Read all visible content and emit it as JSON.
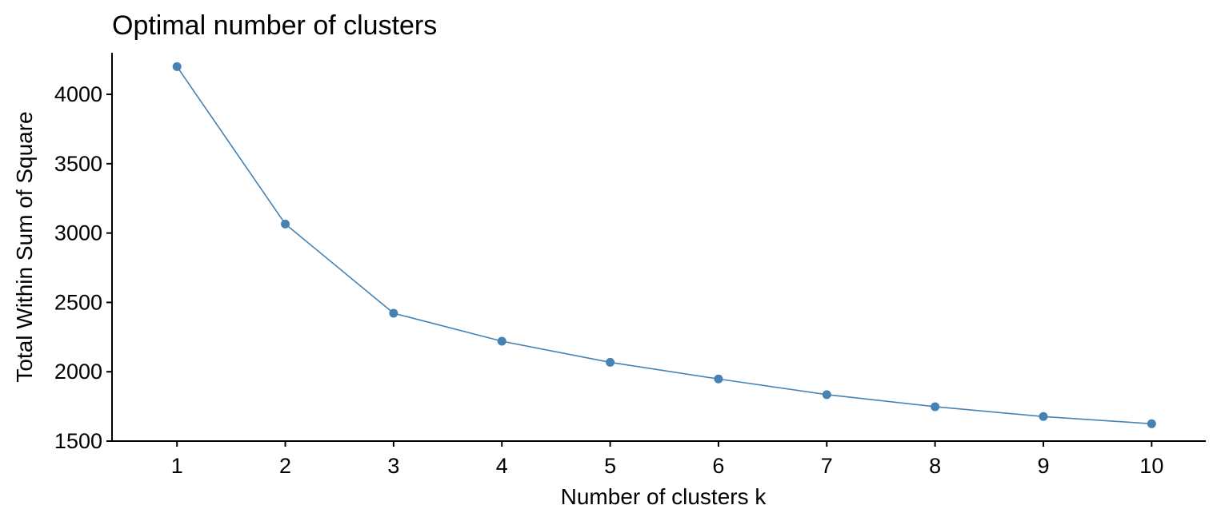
{
  "chart_data": {
    "type": "line",
    "title": "Optimal number of clusters",
    "xlabel": "Number of clusters k",
    "ylabel": "Total Within Sum of Square",
    "x": [
      1,
      2,
      3,
      4,
      5,
      6,
      7,
      8,
      9,
      10
    ],
    "series": [
      {
        "values": [
          4200,
          3065,
          2422,
          2220,
          2068,
          1948,
          1835,
          1748,
          1677,
          1625
        ]
      }
    ],
    "xticks": [
      1,
      2,
      3,
      4,
      5,
      6,
      7,
      8,
      9,
      10
    ],
    "yticks": [
      1500,
      2000,
      2500,
      3000,
      3500,
      4000
    ],
    "xlim": [
      0.4,
      10.5
    ],
    "ylim": [
      1500,
      4300
    ],
    "grid": false,
    "legend": "none",
    "colors": {
      "series": "#4682b4",
      "axis": "#000000"
    }
  }
}
